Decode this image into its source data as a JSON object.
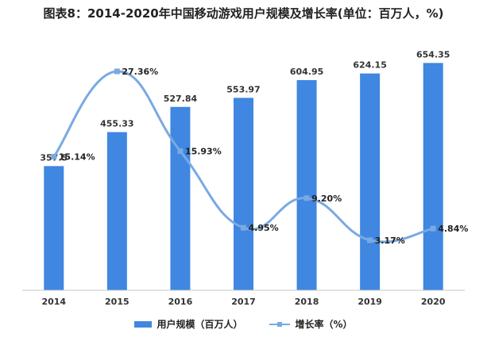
{
  "title": "图表8：2014-2020年中国移动游戏用户规模及增长率(单位：百万人，%)",
  "chart_data": {
    "type": "bar",
    "categories": [
      "2014",
      "2015",
      "2016",
      "2017",
      "2018",
      "2019",
      "2020"
    ],
    "series": [
      {
        "name": "用户规模（百万人）",
        "type": "bar",
        "values": [
          357.5,
          455.33,
          527.84,
          553.97,
          604.95,
          624.15,
          654.35
        ],
        "labels": [
          "357.5",
          "455.33",
          "527.84",
          "553.97",
          "604.95",
          "624.15",
          "654.35"
        ],
        "color": "#3f87e0"
      },
      {
        "name": "增长率（%）",
        "type": "line",
        "smooth": true,
        "values": [
          15.14,
          27.36,
          15.93,
          4.95,
          9.2,
          3.17,
          4.84
        ],
        "labels": [
          "15.14%",
          "27.36%",
          "15.93%",
          "4.95%",
          "9.20%",
          "3.17%",
          "4.84%"
        ],
        "color": "#7aa9e3"
      }
    ],
    "bar_ylim": [
      0,
      700
    ],
    "line_ylim": [
      0,
      30
    ],
    "grid": false,
    "legend": "bottom-center"
  }
}
